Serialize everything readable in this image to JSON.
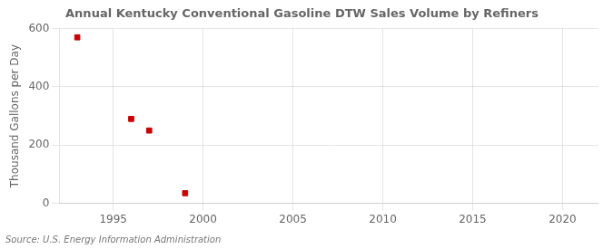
{
  "chart_data": {
    "type": "scatter",
    "title": "Annual Kentucky Conventional Gasoline DTW Sales Volume by Refiners",
    "ylabel": "Thousand Gallons per Day",
    "annotation": "Source: U.S. Energy Information Administration",
    "x": [
      1993,
      1996,
      1997,
      1999
    ],
    "values": [
      570,
      290,
      250,
      35
    ],
    "color": "#cc0000",
    "marker": "square",
    "xlim": [
      1992,
      2022
    ],
    "xticks": [
      1995,
      2000,
      2005,
      2010,
      2015,
      2020
    ],
    "ylim": [
      0,
      600
    ],
    "yticks": [
      0,
      200,
      400,
      600
    ],
    "grid": true
  }
}
